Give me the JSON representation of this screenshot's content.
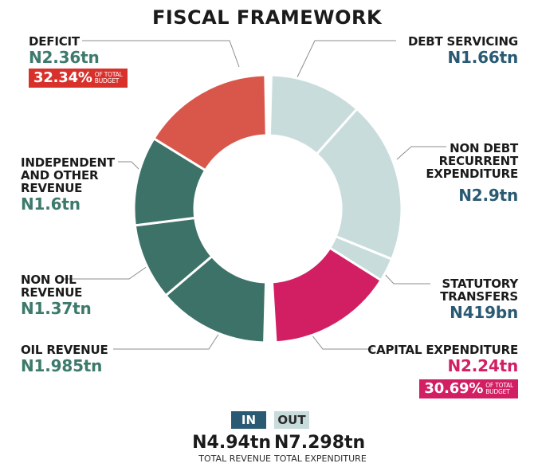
{
  "title": "FISCAL FRAMEWORK",
  "segments": {
    "deficit": {
      "name": "DEFICIT",
      "value": "N2.36tn",
      "badge_pct": "32.34%",
      "badge_sub1": "OF TOTAL",
      "badge_sub2": "BUDGET"
    },
    "debt_servicing": {
      "name": "DEBT SERVICING",
      "value": "N1.66tn"
    },
    "non_debt": {
      "name1": "NON DEBT",
      "name2": "RECURRENT",
      "name3": "EXPENDITURE",
      "value": "N2.9tn"
    },
    "statutory": {
      "name1": "STATUTORY",
      "name2": "TRANSFERS",
      "value": "N419bn"
    },
    "capital": {
      "name": "CAPITAL EXPENDITURE",
      "value": "N2.24tn",
      "badge_pct": "30.69%",
      "badge_sub1": "OF TOTAL",
      "badge_sub2": "BUDGET"
    },
    "independent": {
      "name1": "INDEPENDENT",
      "name2": "AND OTHER",
      "name3": "REVENUE",
      "value": "N1.6tn"
    },
    "non_oil": {
      "name1": "NON OIL",
      "name2": "REVENUE",
      "value": "N1.37tn"
    },
    "oil": {
      "name": "OIL REVENUE",
      "value": "N1.985tn"
    }
  },
  "legend": {
    "in_label": "IN",
    "out_label": "OUT",
    "total_revenue": "N4.94tn",
    "total_revenue_label": "TOTAL REVENUE",
    "total_expenditure": "N7.298tn",
    "total_expenditure_label": "TOTAL EXPENDITURE"
  },
  "colors": {
    "deficit": "#d9574a",
    "revenue": "#3d7268",
    "expenditure_light": "#c9dcdc",
    "capital": "#d21f63",
    "in_chip": "#2a5a73"
  },
  "chart_data": {
    "type": "pie",
    "variant": "donut",
    "title": "FISCAL FRAMEWORK",
    "halves": [
      {
        "name": "OUT (Total Expenditure)",
        "total": 7.298,
        "unit": "N trillion",
        "slices": [
          {
            "label": "DEBT SERVICING",
            "value": 1.66
          },
          {
            "label": "NON DEBT RECURRENT EXPENDITURE",
            "value": 2.9
          },
          {
            "label": "STATUTORY TRANSFERS",
            "value": 0.419
          },
          {
            "label": "CAPITAL EXPENDITURE",
            "value": 2.24,
            "pct_of_total_budget": 30.69
          }
        ]
      },
      {
        "name": "IN (Total Revenue + Deficit)",
        "total": 7.298,
        "unit": "N trillion",
        "slices": [
          {
            "label": "OIL REVENUE",
            "value": 1.985
          },
          {
            "label": "NON OIL REVENUE",
            "value": 1.37
          },
          {
            "label": "INDEPENDENT AND OTHER REVENUE",
            "value": 1.6
          },
          {
            "label": "DEFICIT",
            "value": 2.36,
            "pct_of_total_budget": 32.34
          }
        ]
      }
    ],
    "totals": {
      "total_revenue": 4.94,
      "total_expenditure": 7.298
    }
  }
}
